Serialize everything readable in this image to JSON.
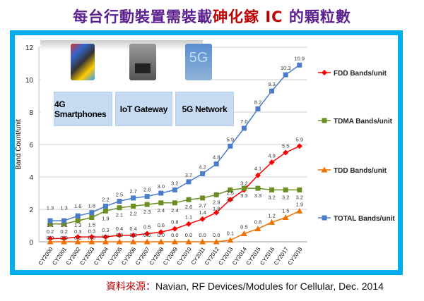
{
  "title": {
    "part1": "每台行動裝置需裝載",
    "part2": "砷化鎵 IC",
    "part3": " 的顆粒數",
    "color1": "#5b1f8f",
    "color2": "#c00000"
  },
  "panels": [
    {
      "label": "4G Smartphones",
      "icon": "smartphones-image"
    },
    {
      "label": "IoT Gateway",
      "icon": "router-image"
    },
    {
      "label": "5G Network",
      "icon": "5g-tower-image",
      "badge": "5G"
    }
  ],
  "source": {
    "prefix": "資料來源：",
    "text": "Navian, RF Devices/Modules for Cellular, Dec. 2014"
  },
  "chart_data": {
    "type": "line",
    "ylabel": "Band Count/unit",
    "xlabel": "",
    "ylim": [
      0,
      12
    ],
    "yticks": [
      0,
      2,
      4,
      6,
      8,
      10,
      12
    ],
    "grid": true,
    "legend_position": "right",
    "categories": [
      "CY2000",
      "CY2001",
      "CY2002",
      "CY2003",
      "CY2004",
      "CY2005",
      "CY2006",
      "CY2007",
      "CY2008",
      "CY2009",
      "CY2010",
      "CY2011",
      "CY2012",
      "CY2013",
      "CY2014",
      "CY2015",
      "CY2016",
      "CY2017",
      "CY2018"
    ],
    "series": [
      {
        "name": "FDD Bands/unit",
        "color": "#ff0000",
        "marker": "diamond",
        "values": [
          0.2,
          0.2,
          0.3,
          0.3,
          0.3,
          0.4,
          0.4,
          0.5,
          0.6,
          0.8,
          1.1,
          1.4,
          1.8,
          2.6,
          3.2,
          4.1,
          4.9,
          5.5,
          5.9
        ]
      },
      {
        "name": "TDMA Bands/unit",
        "color": "#6b8e23",
        "marker": "square",
        "values": [
          1.1,
          1.1,
          1.3,
          1.5,
          1.9,
          2.1,
          2.2,
          2.3,
          2.4,
          2.4,
          2.6,
          2.7,
          2.9,
          3.2,
          3.3,
          3.3,
          3.2,
          3.2,
          3.2
        ]
      },
      {
        "name": "TDD Bands/unit",
        "color": "#f07000",
        "marker": "triangle",
        "values": [
          0.0,
          0.0,
          0.0,
          0.0,
          0.0,
          0.0,
          0.0,
          0.0,
          0.0,
          0.0,
          0.0,
          0.0,
          0.0,
          0.1,
          0.5,
          0.8,
          1.2,
          1.5,
          1.9
        ]
      },
      {
        "name": "TOTAL Bands/unit",
        "color": "#4a7cc9",
        "marker": "square",
        "values": [
          1.3,
          1.3,
          1.6,
          1.8,
          2.2,
          2.5,
          2.7,
          2.8,
          3.0,
          3.2,
          3.7,
          4.2,
          4.8,
          5.9,
          7.0,
          8.2,
          9.3,
          10.3,
          10.9
        ]
      }
    ]
  }
}
